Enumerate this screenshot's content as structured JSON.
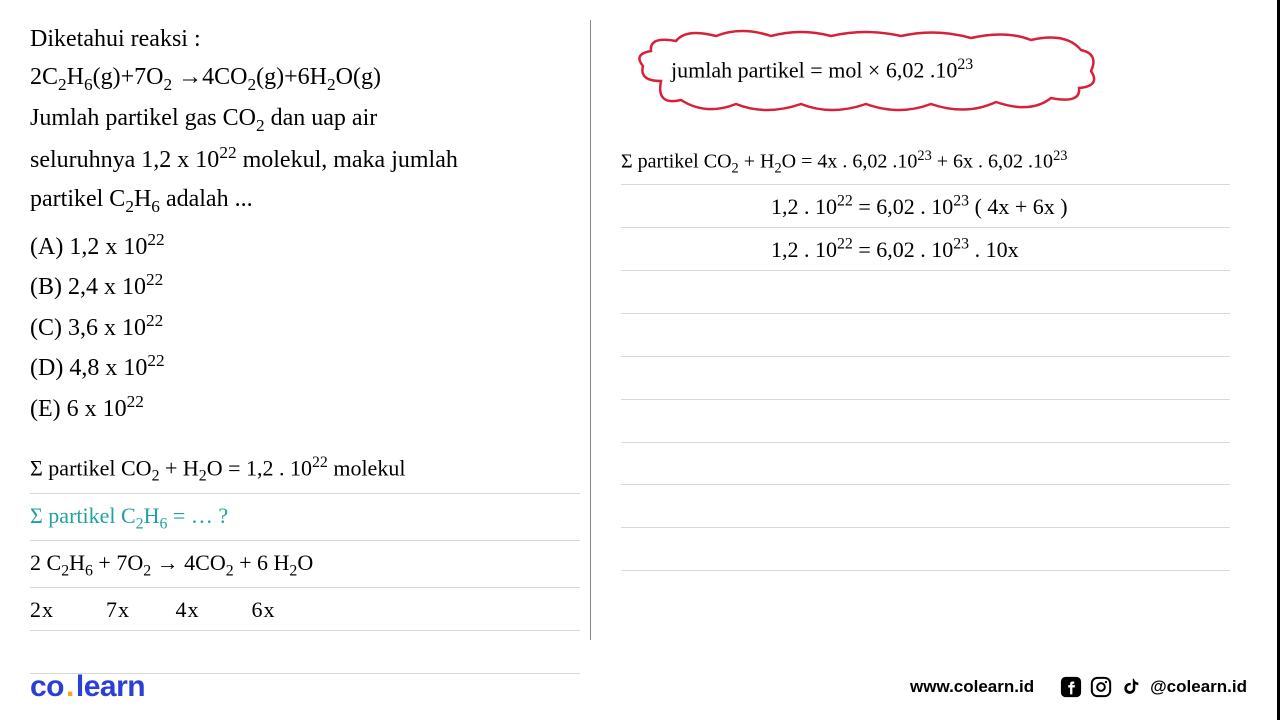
{
  "problem": {
    "title": "Diketahui reaksi :",
    "equation_html": "2C<span class='sub'>2</span>H<span class='sub'>6</span>(g)+7O<span class='sub'>2</span> →4CO<span class='sub'>2</span>(g)+6H<span class='sub'>2</span>O(g)",
    "body_l1_html": "Jumlah partikel gas CO<span class='sub'>2</span> dan uap air",
    "body_l2_html": "seluruhnya 1,2 x 10<span class='sup'>22</span> molekul, maka jumlah",
    "body_l3_html": "partikel C<span class='sub'>2</span>H<span class='sub'>6</span> adalah ..."
  },
  "options": {
    "A": "(A)  1,2 x 10",
    "B": "(B)  2,4 x 10",
    "C": "(C)  3,6 x 10",
    "D": "(D)  4,8 x 10",
    "E": "(E)  6 x 10",
    "exp": "22"
  },
  "handwriting_left": {
    "l1_html": "Σ partikel  CO<span class='sub'>2</span> + H<span class='sub'>2</span>O  =  1,2 . 10<span class='sup'>22</span>  molekul",
    "l2_html": "Σ partikel  C<span class='sub'>2</span>H<span class='sub'>6</span> = … ?",
    "l3_html": "2 C<span class='sub'>2</span>H<span class='sub'>6</span> + 7O<span class='sub'>2</span> → 4CO<span class='sub'>2</span> + 6 H<span class='sub'>2</span>O",
    "l4": "2x        7x       4x        6x"
  },
  "cloud": {
    "text_html": "jumlah partikel = mol × 6,02 .10<span class='sup'>23</span>",
    "stroke": "#d6213b"
  },
  "handwriting_right": {
    "r1_html": "Σ partikel CO<span class='sub'>2</span> + H<span class='sub'>2</span>O  =  4x . 6,02 .10<span class='sup'>23</span> + 6x . 6,02 .10<span class='sup'>23</span>",
    "r2_html": "1,2 . 10<span class='sup'>22</span>   =  6,02 . 10<span class='sup'>23</span> ( 4x + 6x )",
    "r3_html": "1,2 . 10<span class='sup'>22</span>   =  6,02 . 10<span class='sup'>23</span> .  10x"
  },
  "footer": {
    "logo_left": "co",
    "logo_right": "learn",
    "website": "www.colearn.id",
    "handle": "@colearn.id"
  },
  "colors": {
    "text": "#000000",
    "logo_blue": "#2a3fd6",
    "logo_orange": "#f5a623",
    "teal": "#1fa39a",
    "cloud_red": "#d6213b",
    "rule": "#d8d8d8"
  }
}
